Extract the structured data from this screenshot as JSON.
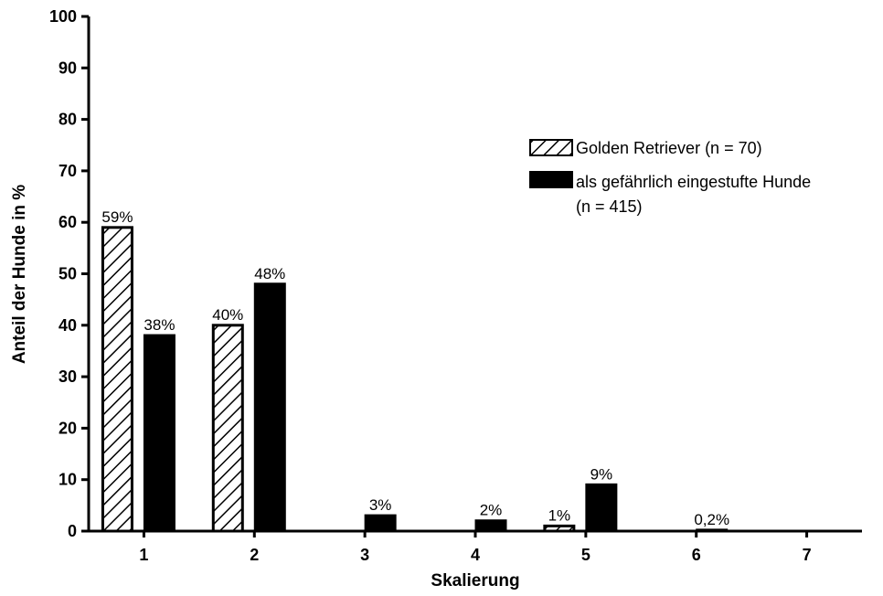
{
  "chart_data": {
    "type": "bar",
    "title": "",
    "xlabel": "Skalierung",
    "ylabel": "Anteil der Hunde in %",
    "categories": [
      "1",
      "2",
      "3",
      "4",
      "5",
      "6",
      "7"
    ],
    "ylim": [
      0,
      100
    ],
    "yticks": [
      0,
      10,
      20,
      30,
      40,
      50,
      60,
      70,
      80,
      90,
      100
    ],
    "ytick_labels": [
      "0",
      "10",
      "20",
      "30",
      "40",
      "50",
      "60",
      "70",
      "80",
      "90",
      "100"
    ],
    "grid": false,
    "legend_position": "right",
    "series": [
      {
        "name": "Golden Retriever (n = 70)",
        "fill": "hatched",
        "color": "#000000",
        "values": [
          59,
          40,
          0,
          0,
          1,
          0,
          0
        ],
        "labels": [
          "59%",
          "40%",
          "",
          "",
          "1%",
          "",
          ""
        ]
      },
      {
        "name_lines": [
          "als gefährlich eingestufte Hunde",
          "(n = 415)"
        ],
        "fill": "solid",
        "color": "#000000",
        "values": [
          38,
          48,
          3,
          2,
          9,
          0.2,
          0
        ],
        "labels": [
          "38%",
          "48%",
          "3%",
          "2%",
          "9%",
          "0,2%",
          ""
        ]
      }
    ]
  }
}
